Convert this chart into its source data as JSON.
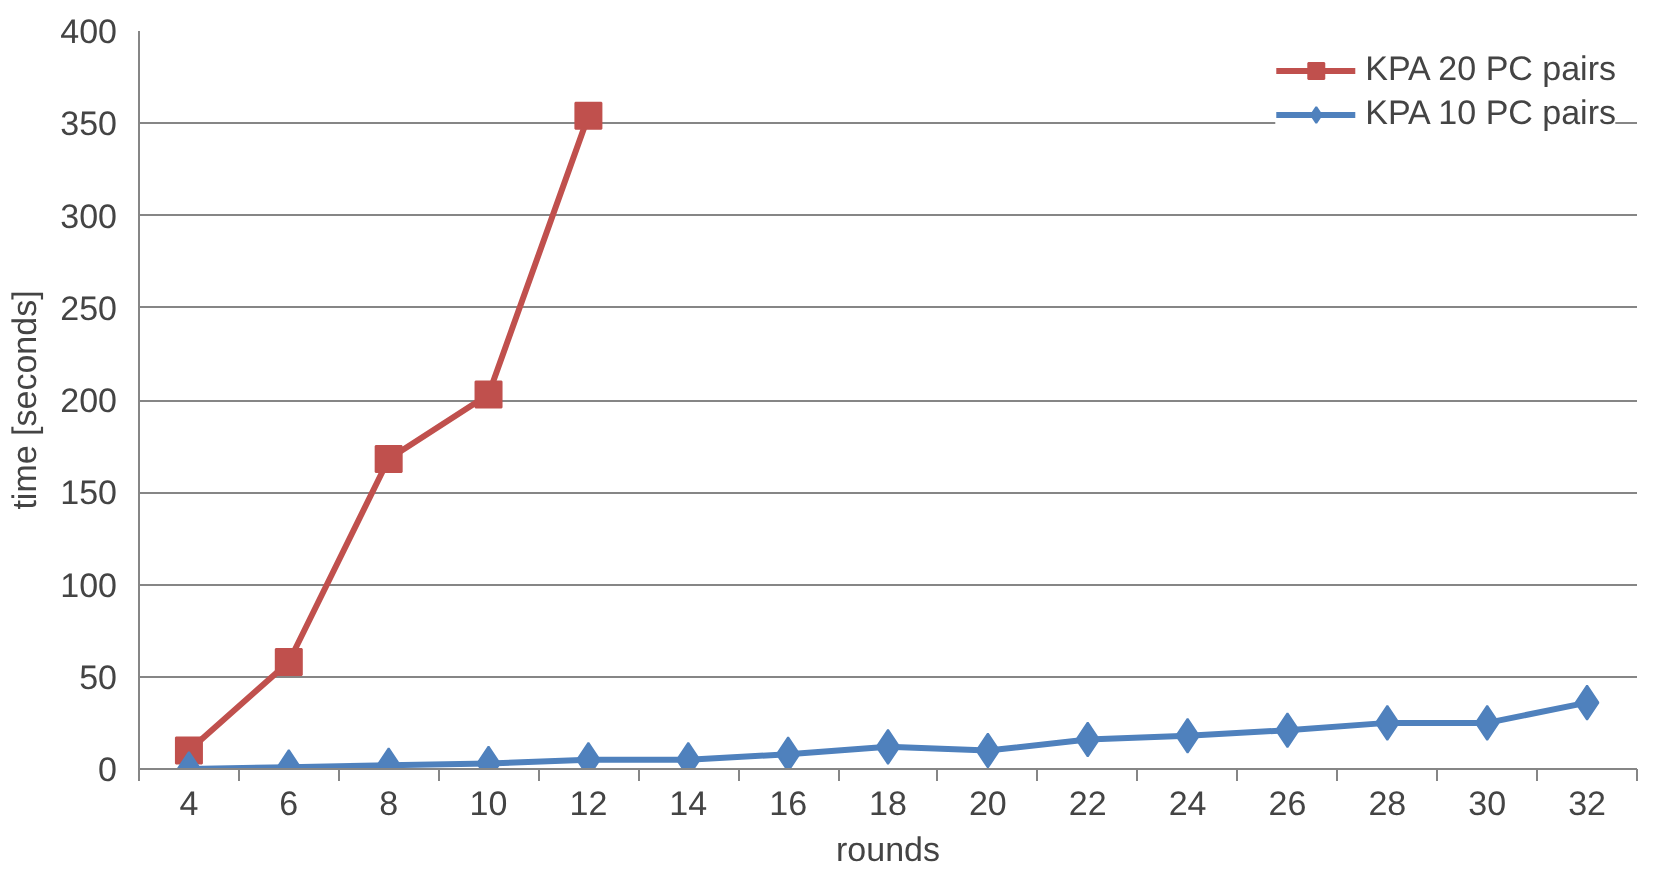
{
  "chart_data": {
    "type": "line",
    "xlabel": "rounds",
    "ylabel": "time [seconds]",
    "categories": [
      "4",
      "6",
      "8",
      "10",
      "12",
      "14",
      "16",
      "18",
      "20",
      "22",
      "24",
      "26",
      "28",
      "30",
      "32"
    ],
    "series": [
      {
        "name": "KPA 20 PC pairs",
        "color": "#c0504d",
        "marker": "square",
        "values": [
          10,
          58,
          168,
          203,
          354,
          null,
          null,
          null,
          null,
          null,
          null,
          null,
          null,
          null,
          null
        ]
      },
      {
        "name": "KPA 10 PC pairs",
        "color": "#4f81bd",
        "marker": "diamond",
        "values": [
          0,
          1,
          2,
          3,
          5,
          5,
          8,
          12,
          10,
          16,
          18,
          21,
          25,
          25,
          36
        ]
      }
    ],
    "ylim": [
      0,
      400
    ],
    "yticks": [
      0,
      50,
      100,
      150,
      200,
      250,
      300,
      350,
      400
    ],
    "grid": "y",
    "legend": "top right",
    "line_style": "solid"
  }
}
